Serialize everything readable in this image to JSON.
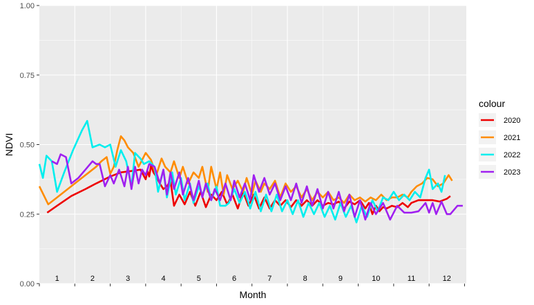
{
  "chart_data": {
    "type": "line",
    "title": "",
    "xlabel": "Month",
    "ylabel": "NDVI",
    "ylim": [
      0,
      1
    ],
    "xlim": [
      0.5,
      12.55
    ],
    "y_ticks": [
      0,
      0.25,
      0.5,
      0.75,
      1
    ],
    "y_tick_labels": [
      "0.00",
      "0.25",
      "0.50",
      "0.75",
      "1.00"
    ],
    "month_labels": [
      "1",
      "2",
      "3",
      "4",
      "5",
      "6",
      "7",
      "8",
      "9",
      "10",
      "11",
      "12"
    ],
    "grid": true,
    "legend": {
      "title": "colour",
      "position": "right"
    },
    "series": [
      {
        "name": "2020",
        "color": "#ee0000",
        "x": [
          0.72,
          1.0,
          1.4,
          1.8,
          2.1,
          2.5,
          2.8,
          3.1,
          3.35,
          3.5,
          3.55,
          3.6,
          3.65,
          3.72,
          3.8,
          3.9,
          4.0,
          4.1,
          4.2,
          4.3,
          4.45,
          4.6,
          4.75,
          4.9,
          5.05,
          5.2,
          5.35,
          5.5,
          5.65,
          5.8,
          5.95,
          6.1,
          6.25,
          6.4,
          6.55,
          6.7,
          6.85,
          7.0,
          7.15,
          7.3,
          7.45,
          7.6,
          7.75,
          7.9,
          8.05,
          8.2,
          8.35,
          8.5,
          8.65,
          8.8,
          8.95,
          9.1,
          9.25,
          9.4,
          9.55,
          9.7,
          9.8,
          9.9,
          10.0,
          10.1,
          10.2,
          10.3,
          10.45,
          10.6,
          10.75,
          10.9,
          11.0,
          11.2,
          11.4,
          11.6,
          11.8,
          12.0,
          12.1
        ],
        "y": [
          0.255,
          0.28,
          0.315,
          0.34,
          0.36,
          0.385,
          0.4,
          0.405,
          0.41,
          0.375,
          0.405,
          0.385,
          0.425,
          0.4,
          0.385,
          0.36,
          0.34,
          0.35,
          0.37,
          0.28,
          0.32,
          0.285,
          0.33,
          0.28,
          0.33,
          0.275,
          0.32,
          0.3,
          0.33,
          0.285,
          0.32,
          0.27,
          0.33,
          0.28,
          0.32,
          0.27,
          0.31,
          0.27,
          0.3,
          0.28,
          0.3,
          0.275,
          0.3,
          0.28,
          0.3,
          0.28,
          0.3,
          0.28,
          0.29,
          0.285,
          0.295,
          0.27,
          0.295,
          0.285,
          0.3,
          0.27,
          0.29,
          0.25,
          0.28,
          0.26,
          0.275,
          0.27,
          0.28,
          0.275,
          0.29,
          0.275,
          0.29,
          0.3,
          0.3,
          0.3,
          0.295,
          0.305,
          0.315
        ]
      },
      {
        "name": "2021",
        "color": "#ff8c00",
        "x": [
          0.5,
          0.75,
          1.0,
          1.3,
          1.6,
          1.9,
          2.1,
          2.25,
          2.4,
          2.5,
          2.6,
          2.7,
          2.8,
          2.9,
          3.0,
          3.15,
          3.3,
          3.5,
          3.65,
          3.8,
          3.95,
          4.05,
          4.2,
          4.3,
          4.45,
          4.55,
          4.7,
          4.85,
          5.0,
          5.1,
          5.25,
          5.35,
          5.5,
          5.6,
          5.7,
          5.8,
          5.95,
          6.1,
          6.25,
          6.35,
          6.5,
          6.6,
          6.75,
          6.85,
          7.0,
          7.15,
          7.3,
          7.45,
          7.6,
          7.75,
          7.9,
          8.05,
          8.2,
          8.35,
          8.5,
          8.65,
          8.8,
          8.95,
          9.1,
          9.25,
          9.4,
          9.55,
          9.7,
          9.85,
          10.0,
          10.15,
          10.3,
          10.45,
          10.6,
          10.75,
          10.9,
          11.0,
          11.15,
          11.3,
          11.45,
          11.6,
          11.75,
          11.9,
          12.05,
          12.15
        ],
        "y": [
          0.35,
          0.285,
          0.31,
          0.34,
          0.37,
          0.4,
          0.42,
          0.44,
          0.455,
          0.395,
          0.42,
          0.48,
          0.53,
          0.515,
          0.49,
          0.47,
          0.42,
          0.47,
          0.445,
          0.39,
          0.45,
          0.42,
          0.4,
          0.44,
          0.38,
          0.42,
          0.36,
          0.4,
          0.38,
          0.42,
          0.33,
          0.42,
          0.34,
          0.4,
          0.32,
          0.39,
          0.34,
          0.37,
          0.33,
          0.38,
          0.32,
          0.37,
          0.33,
          0.36,
          0.34,
          0.37,
          0.31,
          0.36,
          0.33,
          0.35,
          0.31,
          0.34,
          0.3,
          0.33,
          0.31,
          0.33,
          0.3,
          0.31,
          0.29,
          0.32,
          0.3,
          0.31,
          0.295,
          0.31,
          0.3,
          0.32,
          0.3,
          0.31,
          0.31,
          0.32,
          0.31,
          0.33,
          0.35,
          0.36,
          0.38,
          0.375,
          0.35,
          0.36,
          0.39,
          0.37
        ]
      },
      {
        "name": "2022",
        "color": "#00eeee",
        "x": [
          0.5,
          0.6,
          0.7,
          0.85,
          1.0,
          1.2,
          1.45,
          1.7,
          1.85,
          2.0,
          2.2,
          2.35,
          2.5,
          2.65,
          2.8,
          2.95,
          3.1,
          3.2,
          3.35,
          3.45,
          3.6,
          3.75,
          3.85,
          4.0,
          4.1,
          4.25,
          4.35,
          4.5,
          4.6,
          4.75,
          4.85,
          5.0,
          5.1,
          5.25,
          5.35,
          5.5,
          5.6,
          5.75,
          5.85,
          6.0,
          6.15,
          6.3,
          6.45,
          6.6,
          6.75,
          6.9,
          7.05,
          7.2,
          7.35,
          7.5,
          7.65,
          7.8,
          7.95,
          8.1,
          8.25,
          8.4,
          8.55,
          8.7,
          8.85,
          9.0,
          9.15,
          9.3,
          9.45,
          9.6,
          9.75,
          9.9,
          10.05,
          10.2,
          10.35,
          10.5,
          10.65,
          10.8,
          10.95,
          11.1,
          11.25,
          11.4,
          11.5,
          11.6,
          11.75,
          11.85,
          11.95
        ],
        "y": [
          0.43,
          0.38,
          0.46,
          0.44,
          0.33,
          0.4,
          0.48,
          0.55,
          0.585,
          0.49,
          0.5,
          0.49,
          0.5,
          0.42,
          0.48,
          0.44,
          0.35,
          0.47,
          0.45,
          0.43,
          0.44,
          0.42,
          0.33,
          0.41,
          0.31,
          0.4,
          0.32,
          0.38,
          0.3,
          0.36,
          0.29,
          0.35,
          0.32,
          0.36,
          0.3,
          0.35,
          0.28,
          0.28,
          0.29,
          0.34,
          0.29,
          0.33,
          0.27,
          0.33,
          0.26,
          0.32,
          0.26,
          0.32,
          0.26,
          0.3,
          0.25,
          0.3,
          0.24,
          0.29,
          0.25,
          0.29,
          0.24,
          0.28,
          0.23,
          0.29,
          0.24,
          0.28,
          0.22,
          0.28,
          0.24,
          0.3,
          0.26,
          0.31,
          0.3,
          0.33,
          0.3,
          0.32,
          0.3,
          0.33,
          0.31,
          0.38,
          0.41,
          0.34,
          0.36,
          0.33,
          0.39
        ]
      },
      {
        "name": "2023",
        "color": "#a020f0",
        "x": [
          0.85,
          1.0,
          1.1,
          1.25,
          1.4,
          1.6,
          1.8,
          2.0,
          2.1,
          2.2,
          2.35,
          2.5,
          2.6,
          2.75,
          2.9,
          3.0,
          3.1,
          3.2,
          3.3,
          3.4,
          3.5,
          3.6,
          3.75,
          3.9,
          4.0,
          4.1,
          4.2,
          4.3,
          4.45,
          4.55,
          4.7,
          4.85,
          5.0,
          5.1,
          5.2,
          5.35,
          5.45,
          5.6,
          5.75,
          5.9,
          6.0,
          6.15,
          6.3,
          6.45,
          6.55,
          6.7,
          6.85,
          7.0,
          7.15,
          7.3,
          7.45,
          7.6,
          7.75,
          7.9,
          8.05,
          8.2,
          8.35,
          8.5,
          8.65,
          8.8,
          8.95,
          9.1,
          9.25,
          9.4,
          9.55,
          9.7,
          9.85,
          10.0,
          10.2,
          10.4,
          10.6,
          10.8,
          11.0,
          11.2,
          11.4,
          11.5,
          11.6,
          11.7,
          11.85,
          12.0,
          12.1,
          12.3,
          12.45
        ],
        "y": [
          0.44,
          0.43,
          0.465,
          0.455,
          0.36,
          0.38,
          0.41,
          0.44,
          0.43,
          0.43,
          0.35,
          0.39,
          0.36,
          0.41,
          0.35,
          0.42,
          0.34,
          0.42,
          0.36,
          0.41,
          0.39,
          0.43,
          0.42,
          0.36,
          0.41,
          0.32,
          0.4,
          0.34,
          0.4,
          0.32,
          0.38,
          0.3,
          0.37,
          0.31,
          0.36,
          0.3,
          0.34,
          0.3,
          0.36,
          0.3,
          0.37,
          0.31,
          0.36,
          0.3,
          0.39,
          0.33,
          0.38,
          0.32,
          0.36,
          0.3,
          0.35,
          0.3,
          0.36,
          0.29,
          0.35,
          0.28,
          0.34,
          0.27,
          0.33,
          0.27,
          0.33,
          0.26,
          0.32,
          0.24,
          0.3,
          0.23,
          0.29,
          0.25,
          0.29,
          0.23,
          0.28,
          0.255,
          0.255,
          0.26,
          0.29,
          0.255,
          0.29,
          0.25,
          0.295,
          0.25,
          0.25,
          0.28,
          0.28
        ]
      }
    ]
  }
}
